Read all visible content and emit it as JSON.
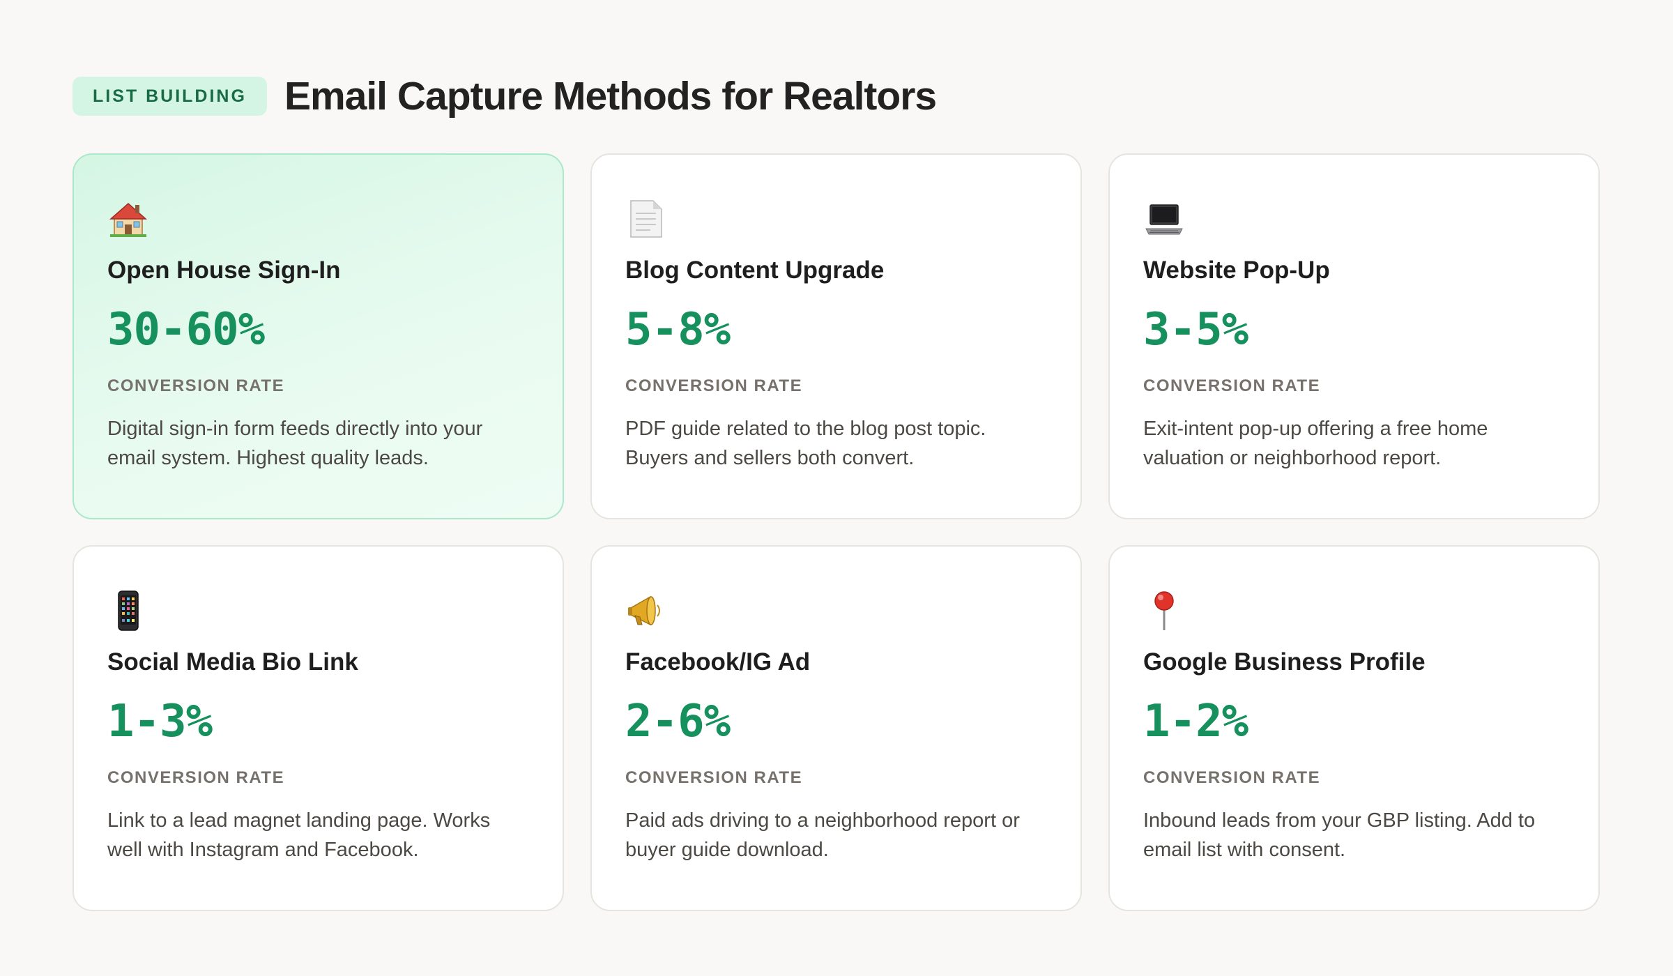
{
  "header": {
    "badge": "LIST BUILDING",
    "title": "Email Capture Methods for Realtors"
  },
  "cards": [
    {
      "icon": "house-icon",
      "title": "Open House Sign-In",
      "rate": "30-60%",
      "rate_label": "CONVERSION RATE",
      "description": "Digital sign-in form feeds directly into your email system. Highest quality leads.",
      "featured": true
    },
    {
      "icon": "document-icon",
      "title": "Blog Content Upgrade",
      "rate": "5-8%",
      "rate_label": "CONVERSION RATE",
      "description": "PDF guide related to the blog post topic. Buyers and sellers both convert.",
      "featured": false
    },
    {
      "icon": "laptop-icon",
      "title": "Website Pop-Up",
      "rate": "3-5%",
      "rate_label": "CONVERSION RATE",
      "description": "Exit-intent pop-up offering a free home valuation or neighborhood report.",
      "featured": false
    },
    {
      "icon": "mobile-phone-icon",
      "title": "Social Media Bio Link",
      "rate": "1-3%",
      "rate_label": "CONVERSION RATE",
      "description": "Link to a lead magnet landing page. Works well with Instagram and Facebook.",
      "featured": false
    },
    {
      "icon": "megaphone-icon",
      "title": "Facebook/IG Ad",
      "rate": "2-6%",
      "rate_label": "CONVERSION RATE",
      "description": "Paid ads driving to a neighborhood report or buyer guide download.",
      "featured": false
    },
    {
      "icon": "map-pin-icon",
      "title": "Google Business Profile",
      "rate": "1-2%",
      "rate_label": "CONVERSION RATE",
      "description": "Inbound leads from your GBP listing. Add to email list with consent.",
      "featured": false
    }
  ],
  "colors": {
    "accent": "#16915d",
    "badge_bg": "#d5f5e4",
    "badge_text": "#186b45",
    "featured_bg": "#e2f9ec",
    "featured_border": "#a9e8c8",
    "page_bg": "#f9f8f6"
  }
}
